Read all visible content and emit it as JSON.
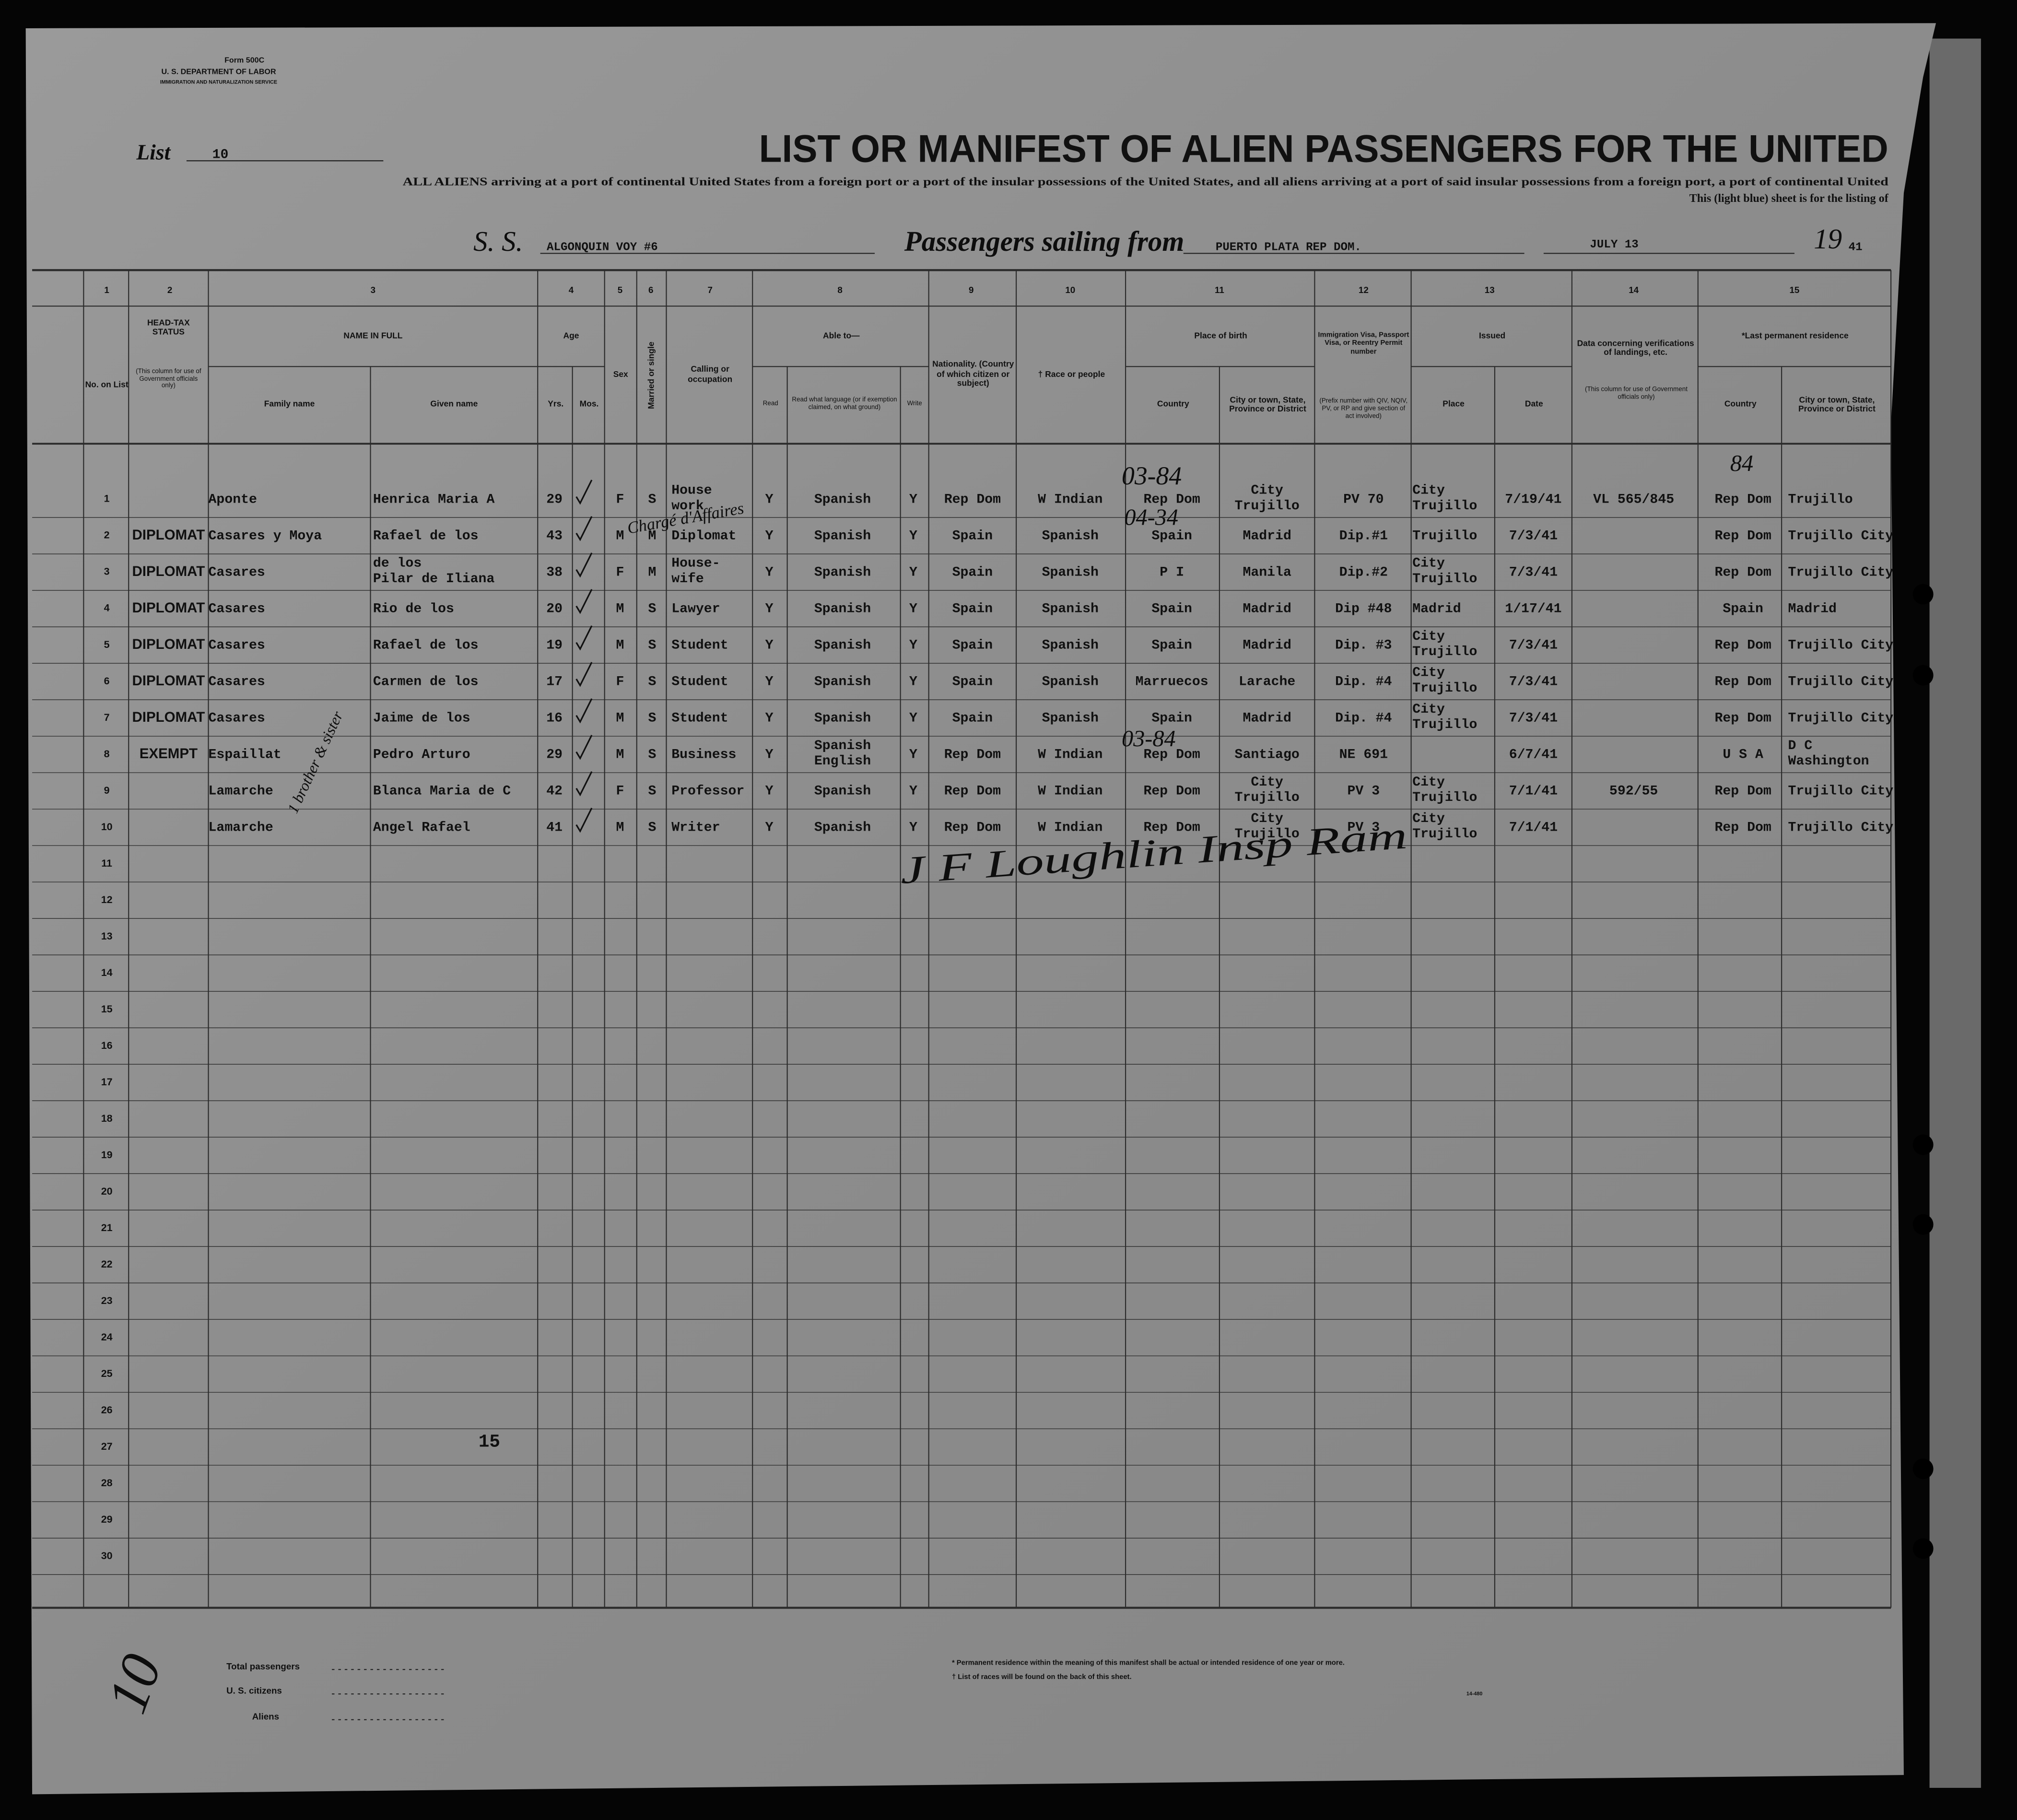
{
  "form": {
    "number": "Form 500C",
    "department": "U. S. DEPARTMENT OF LABOR",
    "service": "IMMIGRATION AND NATURALIZATION SERVICE",
    "list_label": "List",
    "list_number": "10",
    "title": "LIST OR MANIFEST OF ALIEN PASSENGERS FOR THE UNITED",
    "instructions": "ALL ALIENS arriving at a port of continental United States from a foreign port or a port of the insular possessions of the United States, and all aliens arriving at a port of said insular possessions from a foreign port, a port of continental United",
    "sheet_note": "This (light blue) sheet is for the listing of",
    "ss_label": "S. S.",
    "ship": "ALGONQUIN   VOY #6",
    "sailing_label": "Passengers sailing from",
    "port": "PUERTO PLATA REP DOM.",
    "date": "JULY 13",
    "year_prefix": "19",
    "year_suffix": "41"
  },
  "headers": {
    "column_numbers": [
      1,
      2,
      3,
      4,
      5,
      6,
      7,
      8,
      9,
      10,
      11,
      12,
      13,
      14,
      15
    ],
    "no": "No. on List",
    "headtax": "HEAD-TAX STATUS",
    "headtax_note": "(This column for use of Government officials only)",
    "name": "NAME IN FULL",
    "family": "Family name",
    "given": "Given name",
    "age": "Age",
    "yrs": "Yrs.",
    "mos": "Mos.",
    "sex": "Sex",
    "marital": "Married or single",
    "calling": "Calling or occupation",
    "able": "Able to—",
    "read": "Read",
    "read_lang": "Read what language (or if exemption claimed, on what ground)",
    "write": "Write",
    "nationality": "Nationality. (Country of which citizen or subject)",
    "race": "† Race or people",
    "birth": "Place of birth",
    "birth_country": "Country",
    "birth_city": "City or town, State, Province or District",
    "visa": "Immigration Visa, Passport Visa, or Reentry Permit number",
    "visa_note": "(Prefix number with QIV, NQIV, PV, or RP and give section of act involved)",
    "issued": "Issued",
    "issued_place": "Place",
    "issued_date": "Date",
    "landing": "Data concerning verifications of landings, etc.",
    "landing_note": "(This column for use of Government officials only)",
    "residence": "*Last permanent residence",
    "res_country": "Country",
    "res_city": "City or town, State, Province or District"
  },
  "table": {
    "row_numbers": [
      1,
      2,
      3,
      4,
      5,
      6,
      7,
      8,
      9,
      10,
      11,
      12,
      13,
      14,
      15,
      16,
      17,
      18,
      19,
      20,
      21,
      22,
      23,
      24,
      25,
      26,
      27,
      28,
      29,
      30
    ],
    "rows": [
      {
        "family": "Aponte",
        "given": "Henrica Maria A",
        "yrs": "29",
        "sex": "F",
        "marital": "S",
        "occupation": [
          "House",
          "work"
        ],
        "read": "Y",
        "language": "Spanish",
        "write": "Y",
        "nationality": "Rep Dom",
        "race": "W Indian",
        "birth_country": "Rep Dom",
        "birth_city": [
          "City",
          "Trujillo"
        ],
        "visa": "PV 70",
        "issued_place": [
          "City",
          "Trujillo"
        ],
        "issued_date": "7/19/41",
        "landing": "VL 565/845",
        "res_country": "Rep Dom",
        "res_city": "Trujillo"
      },
      {
        "headtax": "DIPLOMAT",
        "family": "Casares y Moya",
        "given": "Rafael de los",
        "yrs": "43",
        "sex": "M",
        "marital": "M",
        "occupation": "Diplomat",
        "read": "Y",
        "language": "Spanish",
        "write": "Y",
        "nationality": "Spain",
        "race": "Spanish",
        "birth_country": "Spain",
        "birth_city": "Madrid",
        "visa": "Dip.#1",
        "issued_place": "Trujillo",
        "issued_date": "7/3/41",
        "res_country": "Rep Dom",
        "res_city": "Trujillo City"
      },
      {
        "headtax": "DIPLOMAT",
        "family": "Casares",
        "given": [
          "de los",
          "Pilar de Iliana"
        ],
        "yrs": "38",
        "sex": "F",
        "marital": "M",
        "occupation": [
          "House-",
          "wife"
        ],
        "read": "Y",
        "language": "Spanish",
        "write": "Y",
        "nationality": "Spain",
        "race": "Spanish",
        "birth_country": "P I",
        "birth_city": "Manila",
        "visa": "Dip.#2",
        "issued_place": [
          "City",
          "Trujillo"
        ],
        "issued_date": "7/3/41",
        "res_country": "Rep Dom",
        "res_city": "Trujillo City"
      },
      {
        "headtax": "DIPLOMAT",
        "family": "Casares",
        "given": "Rio de los",
        "yrs": "20",
        "sex": "M",
        "marital": "S",
        "occupation": "Lawyer",
        "read": "Y",
        "language": "Spanish",
        "write": "Y",
        "nationality": "Spain",
        "race": "Spanish",
        "birth_country": "Spain",
        "birth_city": "Madrid",
        "visa": "Dip #48",
        "issued_place": "Madrid",
        "issued_date": "1/17/41",
        "res_country": "Spain",
        "res_city": "Madrid"
      },
      {
        "headtax": "DIPLOMAT",
        "family": "Casares",
        "given": "Rafael de los",
        "yrs": "19",
        "sex": "M",
        "marital": "S",
        "occupation": "Student",
        "read": "Y",
        "language": "Spanish",
        "write": "Y",
        "nationality": "Spain",
        "race": "Spanish",
        "birth_country": "Spain",
        "birth_city": "Madrid",
        "visa": "Dip. #3",
        "issued_place": [
          "City",
          "Trujillo"
        ],
        "issued_date": "7/3/41",
        "res_country": "Rep Dom",
        "res_city": "Trujillo City"
      },
      {
        "headtax": "DIPLOMAT",
        "family": "Casares",
        "given": "Carmen de los",
        "yrs": "17",
        "sex": "F",
        "marital": "S",
        "occupation": "Student",
        "read": "Y",
        "language": "Spanish",
        "write": "Y",
        "nationality": "Spain",
        "race": "Spanish",
        "birth_country": "Marruecos",
        "birth_city": "Larache",
        "visa": "Dip. #4",
        "issued_place": [
          "City",
          "Trujillo"
        ],
        "issued_date": "7/3/41",
        "res_country": "Rep Dom",
        "res_city": "Trujillo City"
      },
      {
        "headtax": "DIPLOMAT",
        "family": "Casares",
        "given": "Jaime de los",
        "yrs": "16",
        "sex": "M",
        "marital": "S",
        "occupation": "Student",
        "read": "Y",
        "language": "Spanish",
        "write": "Y",
        "nationality": "Spain",
        "race": "Spanish",
        "birth_country": "Spain",
        "birth_city": "Madrid",
        "visa": "Dip. #4",
        "issued_place": [
          "City",
          "Trujillo"
        ],
        "issued_date": "7/3/41",
        "res_country": "Rep Dom",
        "res_city": "Trujillo City"
      },
      {
        "headtax": "EXEMPT",
        "family": "Espaillat",
        "given": "Pedro Arturo",
        "yrs": "29",
        "sex": "M",
        "marital": "S",
        "occupation": "Business",
        "read": "Y",
        "language": [
          "Spanish",
          "English"
        ],
        "write": "Y",
        "nationality": "Rep Dom",
        "race": "W Indian",
        "birth_country": "Rep Dom",
        "birth_city": "Santiago",
        "visa": "NE 691",
        "issued_date": "6/7/41",
        "res_country": "U S A",
        "res_city": [
          "D C",
          "Washington"
        ]
      },
      {
        "family": "Lamarche",
        "given": "Blanca Maria de C",
        "yrs": "42",
        "sex": "F",
        "marital": "S",
        "occupation": "Professor",
        "read": "Y",
        "language": "Spanish",
        "write": "Y",
        "nationality": "Rep Dom",
        "race": "W Indian",
        "birth_country": "Rep Dom",
        "birth_city": [
          "City",
          "Trujillo"
        ],
        "visa": "PV 3",
        "issued_place": [
          "City",
          "Trujillo"
        ],
        "issued_date": "7/1/41",
        "landing": "592/55",
        "res_country": "Rep Dom",
        "res_city": "Trujillo City"
      },
      {
        "family": "Lamarche",
        "given": "Angel Rafael",
        "yrs": "41",
        "sex": "M",
        "marital": "S",
        "occupation": "Writer",
        "read": "Y",
        "language": "Spanish",
        "write": "Y",
        "nationality": "Rep Dom",
        "race": "W Indian",
        "birth_country": "Rep Dom",
        "birth_city": [
          "City",
          "Trujillo"
        ],
        "visa": "PV 3",
        "issued_place": [
          "City",
          "Trujillo"
        ],
        "issued_date": "7/1/41",
        "res_country": "Rep Dom",
        "res_city": "Trujillo City"
      }
    ]
  },
  "annotations": {
    "charge": "Chargé d'Affaires",
    "sibling": "1 brother & sister",
    "code_1": "03-84",
    "code_2": "04-34",
    "code_8": "03-84",
    "res_code_1": "84",
    "signature": "J F Loughlin Insp Ram",
    "page_count": "15",
    "sheet_count": "10"
  },
  "footer": {
    "total_passengers": "Total passengers",
    "us_citizens": "U. S. citizens",
    "aliens": "Aliens",
    "footnote_residence": "* Permanent residence within the meaning of this manifest shall be actual or intended residence of one year or more.",
    "footnote_races": "† List of races will be found on the back of this sheet.",
    "form_code": "14-480"
  }
}
